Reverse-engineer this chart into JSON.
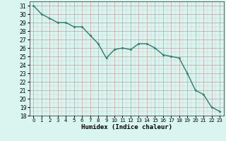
{
  "xlabel": "Humidex (Indice chaleur)",
  "x_values": [
    0,
    1,
    2,
    3,
    4,
    5,
    6,
    7,
    8,
    9,
    10,
    11,
    12,
    13,
    14,
    15,
    16,
    17,
    18,
    19,
    20,
    21,
    22,
    23
  ],
  "y_values": [
    31,
    30,
    29.5,
    29,
    29,
    28.5,
    28.5,
    27.5,
    26.5,
    24.8,
    25.8,
    26,
    25.8,
    26.5,
    26.5,
    26,
    25.2,
    25,
    24.8,
    23,
    21,
    20.5,
    19,
    18.5
  ],
  "line_color": "#2a7d6e",
  "marker_color": "#2a7d6e",
  "bg_color": "#d8f5f0",
  "grid_major_color": "#c4a0a0",
  "grid_minor_color": "#dcc8c8",
  "ylim": [
    18,
    31.5
  ],
  "xlim": [
    -0.5,
    23.5
  ],
  "yticks": [
    18,
    19,
    20,
    21,
    22,
    23,
    24,
    25,
    26,
    27,
    28,
    29,
    30,
    31
  ],
  "xticks": [
    0,
    1,
    2,
    3,
    4,
    5,
    6,
    7,
    8,
    9,
    10,
    11,
    12,
    13,
    14,
    15,
    16,
    17,
    18,
    19,
    20,
    21,
    22,
    23
  ],
  "ytick_fontsize": 5.5,
  "xtick_fontsize": 5.0,
  "xlabel_fontsize": 6.5,
  "line_width": 1.0,
  "marker_size": 2.5
}
